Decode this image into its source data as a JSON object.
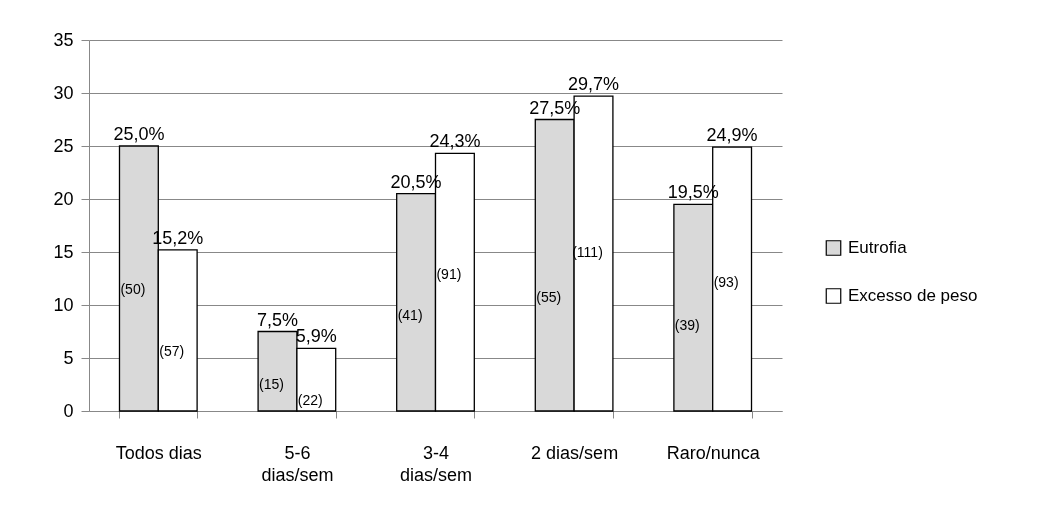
{
  "chart_data": {
    "type": "bar",
    "categories": [
      "Todos dias",
      "5-6 dias/sem",
      "3-4 dias/sem",
      "2 dias/sem",
      "Raro/nunca"
    ],
    "series": [
      {
        "name": "Eutrofia",
        "color": "#d9d9d9",
        "values": [
          25.0,
          7.5,
          20.5,
          27.5,
          19.5
        ],
        "value_labels": [
          "25,0%",
          "7,5%",
          "20,5%",
          "27,5%",
          "19,5%"
        ]
      },
      {
        "name": "Excesso de peso",
        "color": "#ffffff",
        "values": [
          15.2,
          5.9,
          24.3,
          29.7,
          24.9
        ],
        "value_labels": [
          "15,2%",
          "5,9%",
          "24,3%",
          "29,7%",
          "24,9%"
        ]
      }
    ],
    "ylim": [
      0,
      35
    ],
    "yticks": [
      0,
      5,
      10,
      15,
      20,
      25,
      30,
      35
    ],
    "grid": "y",
    "legend": "right",
    "annotations": [
      {
        "text": "(50)",
        "x": "Todos dias",
        "y": 11.4
      },
      {
        "text": "(57)",
        "x": "Todos dias",
        "y": 5.6
      },
      {
        "text": "(15)",
        "x": "5-6 dias/sem",
        "y": 2.5
      },
      {
        "text": "(22)",
        "x": "5-6 dias/sem",
        "y": 0.9
      },
      {
        "text": "(41)",
        "x": "3-4 dias/sem",
        "y": 9.0
      },
      {
        "text": "(91)",
        "x": "3-4 dias/sem",
        "y": 12.8
      },
      {
        "text": "(55)",
        "x": "2 dias/sem",
        "y": 10.7
      },
      {
        "text": "(111)",
        "x": "2 dias/sem",
        "y": 14.9
      },
      {
        "text": "(39)",
        "x": "Raro/nunca",
        "y": 8.0
      },
      {
        "text": "(93)",
        "x": "Raro/nunca",
        "y": 12.1
      }
    ]
  }
}
